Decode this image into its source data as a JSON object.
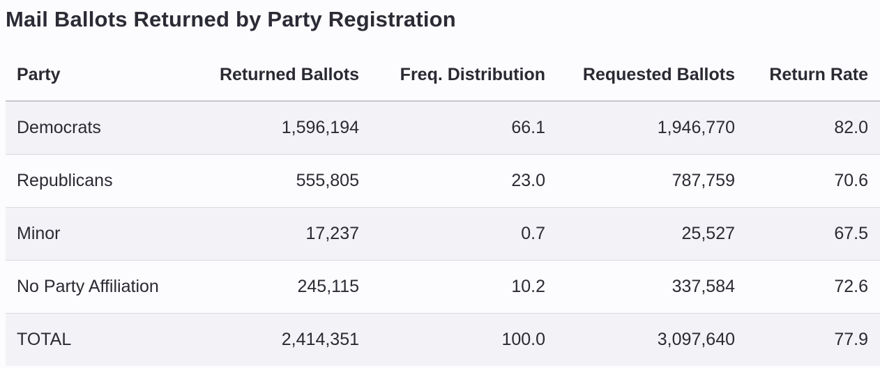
{
  "title": "Mail Ballots Returned by Party Registration",
  "table": {
    "headers": [
      "Party",
      "Returned Ballots",
      "Freq. Distribution",
      "Requested Ballots",
      "Return Rate"
    ],
    "rows": [
      [
        "Democrats",
        "1,596,194",
        "66.1",
        "1,946,770",
        "82.0"
      ],
      [
        "Republicans",
        "555,805",
        "23.0",
        "787,759",
        "70.6"
      ],
      [
        "Minor",
        "17,237",
        "0.7",
        "25,527",
        "67.5"
      ],
      [
        "No Party Affiliation",
        "245,115",
        "10.2",
        "337,584",
        "72.6"
      ],
      [
        "TOTAL",
        "2,414,351",
        "100.0",
        "3,097,640",
        "77.9"
      ]
    ]
  }
}
